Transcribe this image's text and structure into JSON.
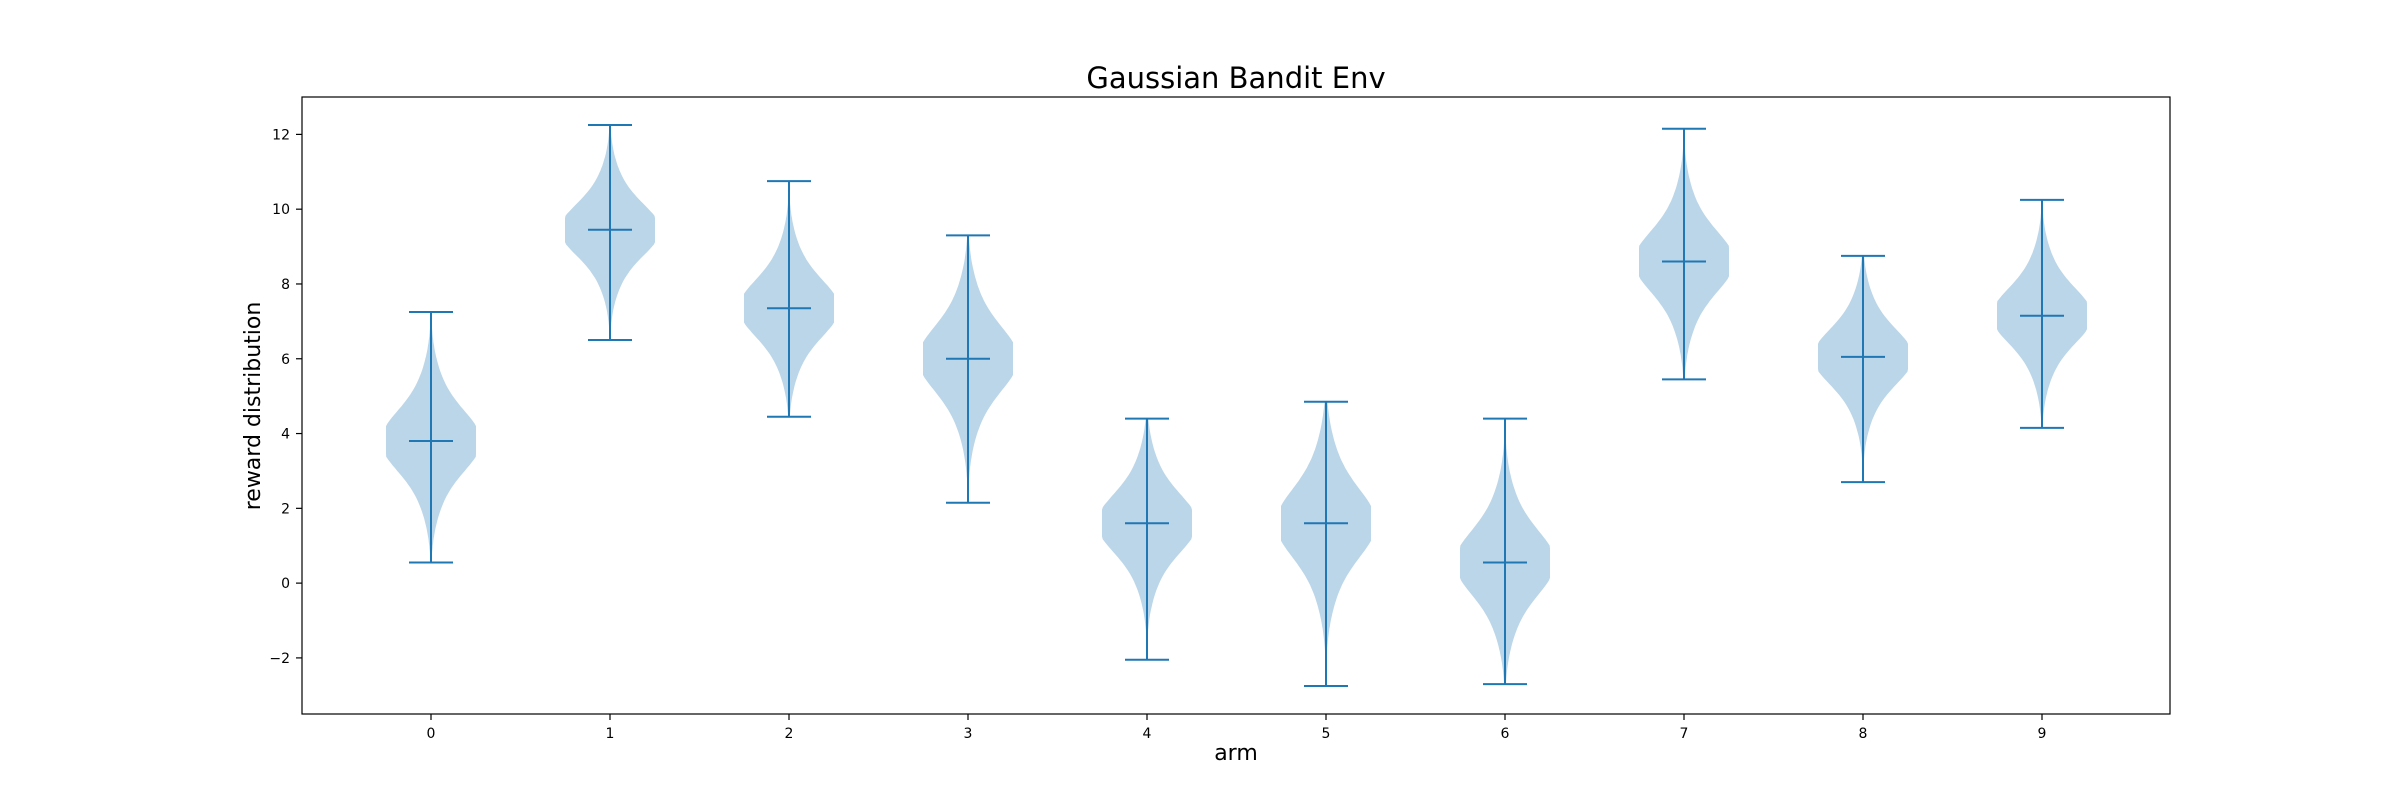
{
  "chart_data": {
    "type": "violin",
    "title": "Gaussian Bandit Env",
    "xlabel": "arm",
    "ylabel": "reward distribution",
    "categories": [
      "0",
      "1",
      "2",
      "3",
      "4",
      "5",
      "6",
      "7",
      "8",
      "9"
    ],
    "ylim": [
      -3.5,
      13.0
    ],
    "yticks": [
      -2,
      0,
      2,
      4,
      6,
      8,
      10,
      12
    ],
    "ytick_labels": [
      "−2",
      "0",
      "2",
      "4",
      "6",
      "8",
      "10",
      "12"
    ],
    "grid": false,
    "color": "#1f77b4",
    "series": [
      {
        "mean": 3.8,
        "min": 0.55,
        "max": 7.25
      },
      {
        "mean": 9.45,
        "min": 6.5,
        "max": 12.25
      },
      {
        "mean": 7.35,
        "min": 4.45,
        "max": 10.75
      },
      {
        "mean": 6.0,
        "min": 2.15,
        "max": 9.3
      },
      {
        "mean": 1.6,
        "min": -2.05,
        "max": 4.4
      },
      {
        "mean": 1.6,
        "min": -2.75,
        "max": 4.85
      },
      {
        "mean": 0.55,
        "min": -2.7,
        "max": 4.4
      },
      {
        "mean": 8.6,
        "min": 5.45,
        "max": 12.15
      },
      {
        "mean": 6.05,
        "min": 2.7,
        "max": 8.75
      },
      {
        "mean": 7.15,
        "min": 4.15,
        "max": 10.25
      }
    ]
  }
}
